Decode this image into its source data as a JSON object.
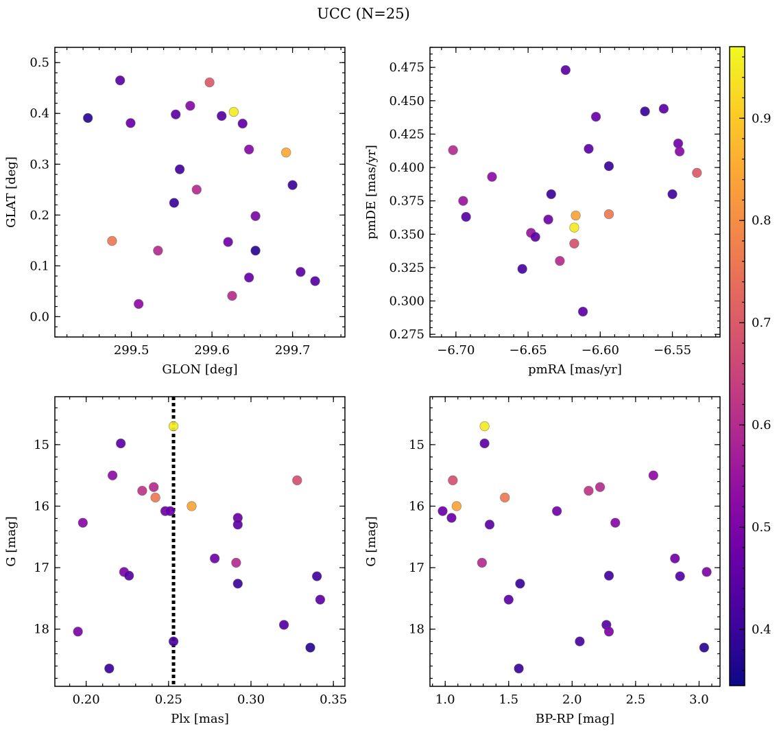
{
  "figure_title": "UCC (N=25)",
  "colorbar": {
    "range": [
      0.345,
      0.97
    ],
    "ticks": [
      0.4,
      0.5,
      0.6,
      0.7,
      0.8,
      0.9
    ],
    "tick_labels": [
      "0.4",
      "0.5",
      "0.6",
      "0.7",
      "0.8",
      "0.9"
    ],
    "colormap": "plasma"
  },
  "chart_data": [
    {
      "type": "scatter",
      "xlabel": "GLON [deg]",
      "ylabel": "GLAT [deg]",
      "xlim": [
        299.405,
        299.765
      ],
      "ylim": [
        -0.04,
        0.53
      ],
      "xticks": [
        299.5,
        299.6,
        299.7
      ],
      "xtick_labels": [
        "299.5",
        "299.6",
        "299.7"
      ],
      "yticks": [
        0.0,
        0.1,
        0.2,
        0.3,
        0.4,
        0.5
      ],
      "ytick_labels": [
        "0.0",
        "0.1",
        "0.2",
        "0.3",
        "0.4",
        "0.5"
      ],
      "invert_y": false,
      "points": [
        {
          "x": 299.446,
          "y": 0.391,
          "c": 0.38
        },
        {
          "x": 299.486,
          "y": 0.465,
          "c": 0.45
        },
        {
          "x": 299.499,
          "y": 0.381,
          "c": 0.47
        },
        {
          "x": 299.555,
          "y": 0.398,
          "c": 0.45
        },
        {
          "x": 299.573,
          "y": 0.415,
          "c": 0.52
        },
        {
          "x": 299.597,
          "y": 0.461,
          "c": 0.7
        },
        {
          "x": 299.612,
          "y": 0.395,
          "c": 0.44
        },
        {
          "x": 299.627,
          "y": 0.403,
          "c": 0.95
        },
        {
          "x": 299.638,
          "y": 0.38,
          "c": 0.46
        },
        {
          "x": 299.646,
          "y": 0.329,
          "c": 0.52
        },
        {
          "x": 299.692,
          "y": 0.323,
          "c": 0.85
        },
        {
          "x": 299.56,
          "y": 0.29,
          "c": 0.41
        },
        {
          "x": 299.581,
          "y": 0.25,
          "c": 0.6
        },
        {
          "x": 299.7,
          "y": 0.259,
          "c": 0.4
        },
        {
          "x": 299.553,
          "y": 0.224,
          "c": 0.4
        },
        {
          "x": 299.654,
          "y": 0.198,
          "c": 0.5
        },
        {
          "x": 299.476,
          "y": 0.149,
          "c": 0.76
        },
        {
          "x": 299.62,
          "y": 0.147,
          "c": 0.48
        },
        {
          "x": 299.533,
          "y": 0.13,
          "c": 0.6
        },
        {
          "x": 299.654,
          "y": 0.13,
          "c": 0.38
        },
        {
          "x": 299.71,
          "y": 0.088,
          "c": 0.45
        },
        {
          "x": 299.646,
          "y": 0.077,
          "c": 0.47
        },
        {
          "x": 299.728,
          "y": 0.07,
          "c": 0.44
        },
        {
          "x": 299.625,
          "y": 0.041,
          "c": 0.6
        },
        {
          "x": 299.509,
          "y": 0.025,
          "c": 0.53
        }
      ]
    },
    {
      "type": "scatter",
      "xlabel": "pmRA [mas/yr]",
      "ylabel": "pmDE [mas/yr]",
      "xlim": [
        -6.718,
        -6.517
      ],
      "ylim": [
        0.273,
        0.49
      ],
      "xticks": [
        -6.7,
        -6.65,
        -6.6,
        -6.55
      ],
      "xtick_labels": [
        "−6.70",
        "−6.65",
        "−6.60",
        "−6.55"
      ],
      "yticks": [
        0.275,
        0.3,
        0.325,
        0.35,
        0.375,
        0.4,
        0.425,
        0.45,
        0.475
      ],
      "ytick_labels": [
        "0.275",
        "0.300",
        "0.325",
        "0.350",
        "0.375",
        "0.400",
        "0.425",
        "0.450",
        "0.475"
      ],
      "invert_y": false,
      "points": [
        {
          "x": -6.624,
          "y": 0.473,
          "c": 0.45
        },
        {
          "x": -6.569,
          "y": 0.442,
          "c": 0.4
        },
        {
          "x": -6.556,
          "y": 0.444,
          "c": 0.45
        },
        {
          "x": -6.603,
          "y": 0.438,
          "c": 0.47
        },
        {
          "x": -6.546,
          "y": 0.418,
          "c": 0.48
        },
        {
          "x": -6.545,
          "y": 0.412,
          "c": 0.52
        },
        {
          "x": -6.702,
          "y": 0.413,
          "c": 0.6
        },
        {
          "x": -6.608,
          "y": 0.414,
          "c": 0.45
        },
        {
          "x": -6.594,
          "y": 0.401,
          "c": 0.4
        },
        {
          "x": -6.533,
          "y": 0.396,
          "c": 0.7
        },
        {
          "x": -6.675,
          "y": 0.393,
          "c": 0.53
        },
        {
          "x": -6.634,
          "y": 0.38,
          "c": 0.4
        },
        {
          "x": -6.55,
          "y": 0.38,
          "c": 0.41
        },
        {
          "x": -6.695,
          "y": 0.375,
          "c": 0.55
        },
        {
          "x": -6.693,
          "y": 0.363,
          "c": 0.44
        },
        {
          "x": -6.617,
          "y": 0.364,
          "c": 0.84
        },
        {
          "x": -6.594,
          "y": 0.365,
          "c": 0.76
        },
        {
          "x": -6.636,
          "y": 0.361,
          "c": 0.48
        },
        {
          "x": -6.618,
          "y": 0.355,
          "c": 0.95
        },
        {
          "x": -6.648,
          "y": 0.351,
          "c": 0.55
        },
        {
          "x": -6.645,
          "y": 0.348,
          "c": 0.45
        },
        {
          "x": -6.618,
          "y": 0.343,
          "c": 0.68
        },
        {
          "x": -6.628,
          "y": 0.33,
          "c": 0.6
        },
        {
          "x": -6.654,
          "y": 0.324,
          "c": 0.42
        },
        {
          "x": -6.612,
          "y": 0.292,
          "c": 0.45
        }
      ]
    },
    {
      "type": "scatter",
      "xlabel": "Plx [mas]",
      "ylabel": "G [mag]",
      "xlim": [
        0.181,
        0.357
      ],
      "ylim": [
        18.93,
        14.22
      ],
      "xticks": [
        0.2,
        0.25,
        0.3,
        0.35
      ],
      "xtick_labels": [
        "0.20",
        "0.25",
        "0.30",
        "0.35"
      ],
      "yticks": [
        15,
        16,
        17,
        18
      ],
      "ytick_labels": [
        "15",
        "16",
        "17",
        "18"
      ],
      "invert_y": true,
      "vline": 0.253,
      "points": [
        {
          "x": 0.253,
          "y": 14.7,
          "c": 0.95
        },
        {
          "x": 0.221,
          "y": 14.98,
          "c": 0.45
        },
        {
          "x": 0.216,
          "y": 15.5,
          "c": 0.53
        },
        {
          "x": 0.328,
          "y": 15.58,
          "c": 0.68
        },
        {
          "x": 0.241,
          "y": 15.69,
          "c": 0.6
        },
        {
          "x": 0.234,
          "y": 15.75,
          "c": 0.62
        },
        {
          "x": 0.242,
          "y": 15.86,
          "c": 0.76
        },
        {
          "x": 0.264,
          "y": 16.0,
          "c": 0.84
        },
        {
          "x": 0.248,
          "y": 16.08,
          "c": 0.48
        },
        {
          "x": 0.251,
          "y": 16.08,
          "c": 0.47
        },
        {
          "x": 0.292,
          "y": 16.19,
          "c": 0.47
        },
        {
          "x": 0.198,
          "y": 16.27,
          "c": 0.52
        },
        {
          "x": 0.292,
          "y": 16.3,
          "c": 0.45
        },
        {
          "x": 0.278,
          "y": 16.85,
          "c": 0.48
        },
        {
          "x": 0.291,
          "y": 16.92,
          "c": 0.6
        },
        {
          "x": 0.223,
          "y": 17.07,
          "c": 0.5
        },
        {
          "x": 0.226,
          "y": 17.13,
          "c": 0.44
        },
        {
          "x": 0.34,
          "y": 17.14,
          "c": 0.41
        },
        {
          "x": 0.292,
          "y": 17.26,
          "c": 0.4
        },
        {
          "x": 0.342,
          "y": 17.52,
          "c": 0.45
        },
        {
          "x": 0.32,
          "y": 17.93,
          "c": 0.44
        },
        {
          "x": 0.195,
          "y": 18.04,
          "c": 0.5
        },
        {
          "x": 0.253,
          "y": 18.2,
          "c": 0.42
        },
        {
          "x": 0.336,
          "y": 18.3,
          "c": 0.38
        },
        {
          "x": 0.214,
          "y": 18.64,
          "c": 0.4
        }
      ]
    },
    {
      "type": "scatter",
      "xlabel": "BP-RP [mag]",
      "ylabel": "G [mag]",
      "xlim": [
        0.88,
        3.165
      ],
      "ylim": [
        18.93,
        14.22
      ],
      "xticks": [
        1.0,
        1.5,
        2.0,
        2.5,
        3.0
      ],
      "xtick_labels": [
        "1.0",
        "1.5",
        "2.0",
        "2.5",
        "3.0"
      ],
      "yticks": [
        15,
        16,
        17,
        18
      ],
      "ytick_labels": [
        "15",
        "16",
        "17",
        "18"
      ],
      "invert_y": true,
      "points": [
        {
          "x": 1.31,
          "y": 14.7,
          "c": 0.95
        },
        {
          "x": 1.31,
          "y": 14.98,
          "c": 0.45
        },
        {
          "x": 2.64,
          "y": 15.5,
          "c": 0.53
        },
        {
          "x": 1.06,
          "y": 15.58,
          "c": 0.68
        },
        {
          "x": 2.22,
          "y": 15.69,
          "c": 0.6
        },
        {
          "x": 2.13,
          "y": 15.75,
          "c": 0.62
        },
        {
          "x": 1.47,
          "y": 15.86,
          "c": 0.76
        },
        {
          "x": 1.09,
          "y": 16.0,
          "c": 0.84
        },
        {
          "x": 0.98,
          "y": 16.08,
          "c": 0.47
        },
        {
          "x": 1.88,
          "y": 16.08,
          "c": 0.48
        },
        {
          "x": 1.05,
          "y": 16.19,
          "c": 0.47
        },
        {
          "x": 2.34,
          "y": 16.27,
          "c": 0.52
        },
        {
          "x": 1.35,
          "y": 16.3,
          "c": 0.45
        },
        {
          "x": 2.81,
          "y": 16.85,
          "c": 0.48
        },
        {
          "x": 1.29,
          "y": 16.92,
          "c": 0.6
        },
        {
          "x": 3.06,
          "y": 17.07,
          "c": 0.5
        },
        {
          "x": 2.29,
          "y": 17.13,
          "c": 0.41
        },
        {
          "x": 2.85,
          "y": 17.14,
          "c": 0.44
        },
        {
          "x": 1.59,
          "y": 17.26,
          "c": 0.4
        },
        {
          "x": 1.5,
          "y": 17.52,
          "c": 0.45
        },
        {
          "x": 2.27,
          "y": 17.93,
          "c": 0.44
        },
        {
          "x": 2.29,
          "y": 18.04,
          "c": 0.5
        },
        {
          "x": 2.06,
          "y": 18.2,
          "c": 0.42
        },
        {
          "x": 3.04,
          "y": 18.3,
          "c": 0.38
        },
        {
          "x": 1.58,
          "y": 18.64,
          "c": 0.4
        }
      ]
    }
  ]
}
